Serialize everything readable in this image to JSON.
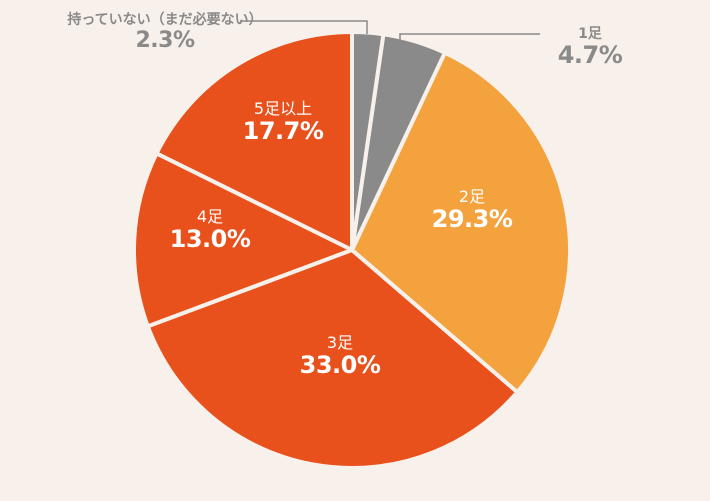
{
  "chart_data": {
    "type": "pie",
    "start": "top",
    "direction": "clockwise",
    "slices": [
      {
        "label": "持っていない（まだ必要ない）",
        "value": 2.3,
        "display": "2.3%",
        "color": "#8a8a8a"
      },
      {
        "label": "1足",
        "value": 4.7,
        "display": "4.7%",
        "color": "#8a8a8a"
      },
      {
        "label": "2足",
        "value": 29.3,
        "display": "29.3%",
        "color": "#f4a23e"
      },
      {
        "label": "3足",
        "value": 33.0,
        "display": "33.0%",
        "color": "#e8501c"
      },
      {
        "label": "4足",
        "value": 13.0,
        "display": "13.0%",
        "color": "#e8501c"
      },
      {
        "label": "5足以上",
        "value": 17.7,
        "display": "17.7%",
        "color": "#e8501c"
      }
    ]
  }
}
